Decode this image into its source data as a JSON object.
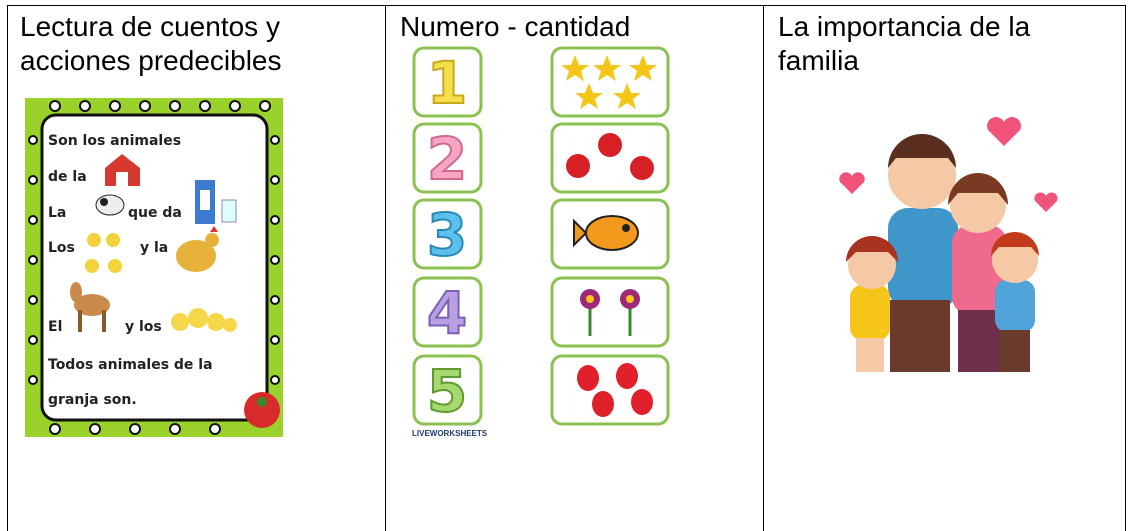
{
  "table": {
    "columns": [
      {
        "title": "Lectura de cuentos y acciones predecibles",
        "poem": [
          "Son los animales",
          "de la",
          "La",
          "que da",
          "Los",
          "y la",
          "El",
          "y los",
          "Todos animales de la",
          "granja son."
        ]
      },
      {
        "title": "Numero - cantidad",
        "numbers": [
          "1",
          "2",
          "3",
          "4",
          "5"
        ],
        "watermark": "LIVEWORKSHEETS"
      },
      {
        "title": "La importancia de la familia"
      }
    ]
  }
}
